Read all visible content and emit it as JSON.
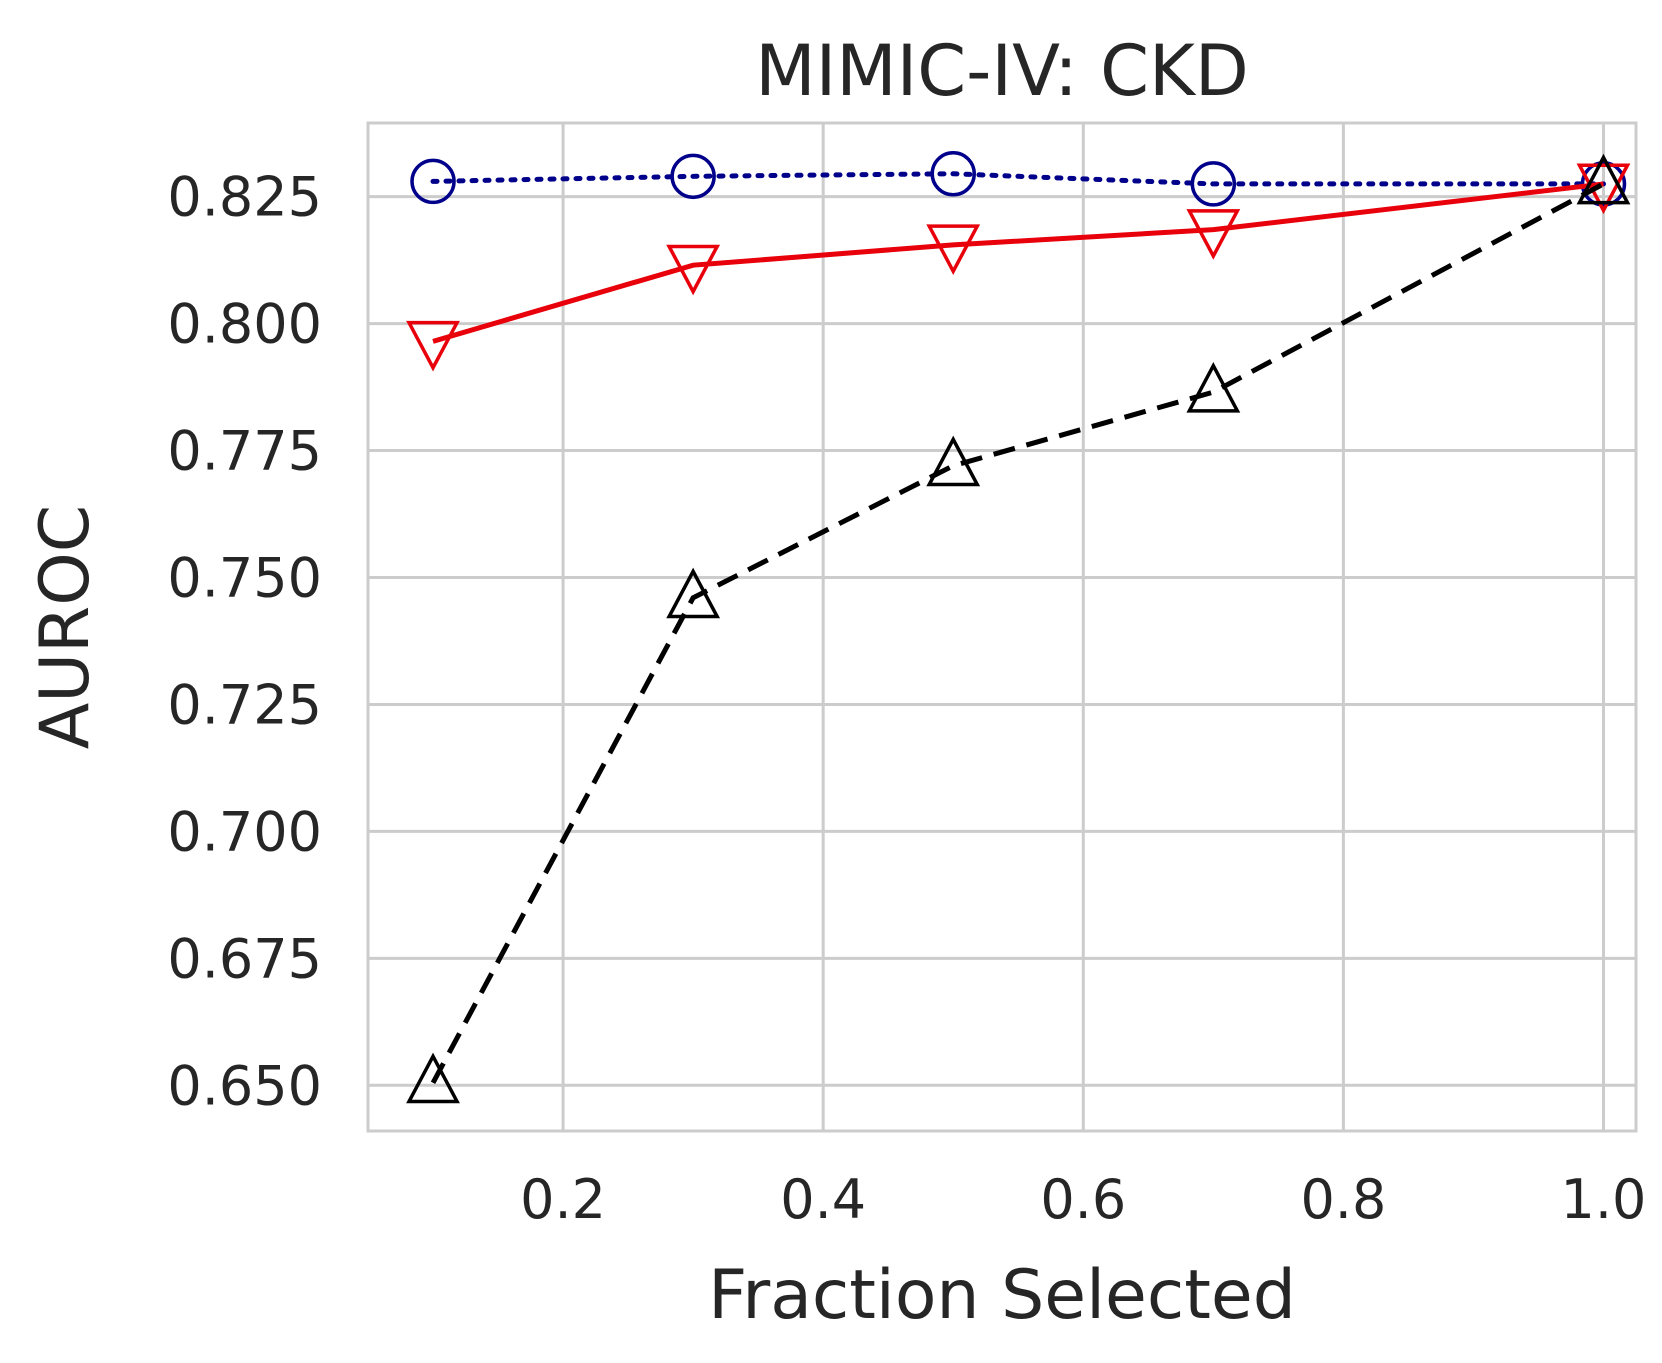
{
  "chart_data": {
    "type": "line",
    "title": "MIMIC-IV: CKD",
    "xlabel": "Fraction Selected",
    "ylabel": "AUROC",
    "xlim": [
      0.05,
      1.025
    ],
    "ylim": [
      0.641,
      0.8395
    ],
    "grid": true,
    "xticks": [
      0.2,
      0.4,
      0.6,
      0.8,
      1.0
    ],
    "xtick_labels": [
      "0.2",
      "0.4",
      "0.6",
      "0.8",
      "1.0"
    ],
    "yticks": [
      0.65,
      0.675,
      0.7,
      0.725,
      0.75,
      0.775,
      0.8,
      0.825
    ],
    "ytick_labels": [
      "0.650",
      "0.675",
      "0.700",
      "0.725",
      "0.750",
      "0.775",
      "0.800",
      "0.825"
    ],
    "x": [
      0.1,
      0.3,
      0.5,
      0.7,
      1.0
    ],
    "series": [
      {
        "values": [
          0.828,
          0.829,
          0.8295,
          0.8275,
          0.8275
        ],
        "color": "#00008b",
        "linestyle": "dotted",
        "marker": "circle"
      },
      {
        "values": [
          0.7965,
          0.8115,
          0.8155,
          0.8185,
          0.8275
        ],
        "color": "#e8000b",
        "linestyle": "solid",
        "marker": "triangle-down"
      },
      {
        "values": [
          0.6505,
          0.746,
          0.772,
          0.7865,
          0.8275
        ],
        "color": "#000000",
        "linestyle": "dashed",
        "marker": "triangle-up"
      }
    ]
  }
}
